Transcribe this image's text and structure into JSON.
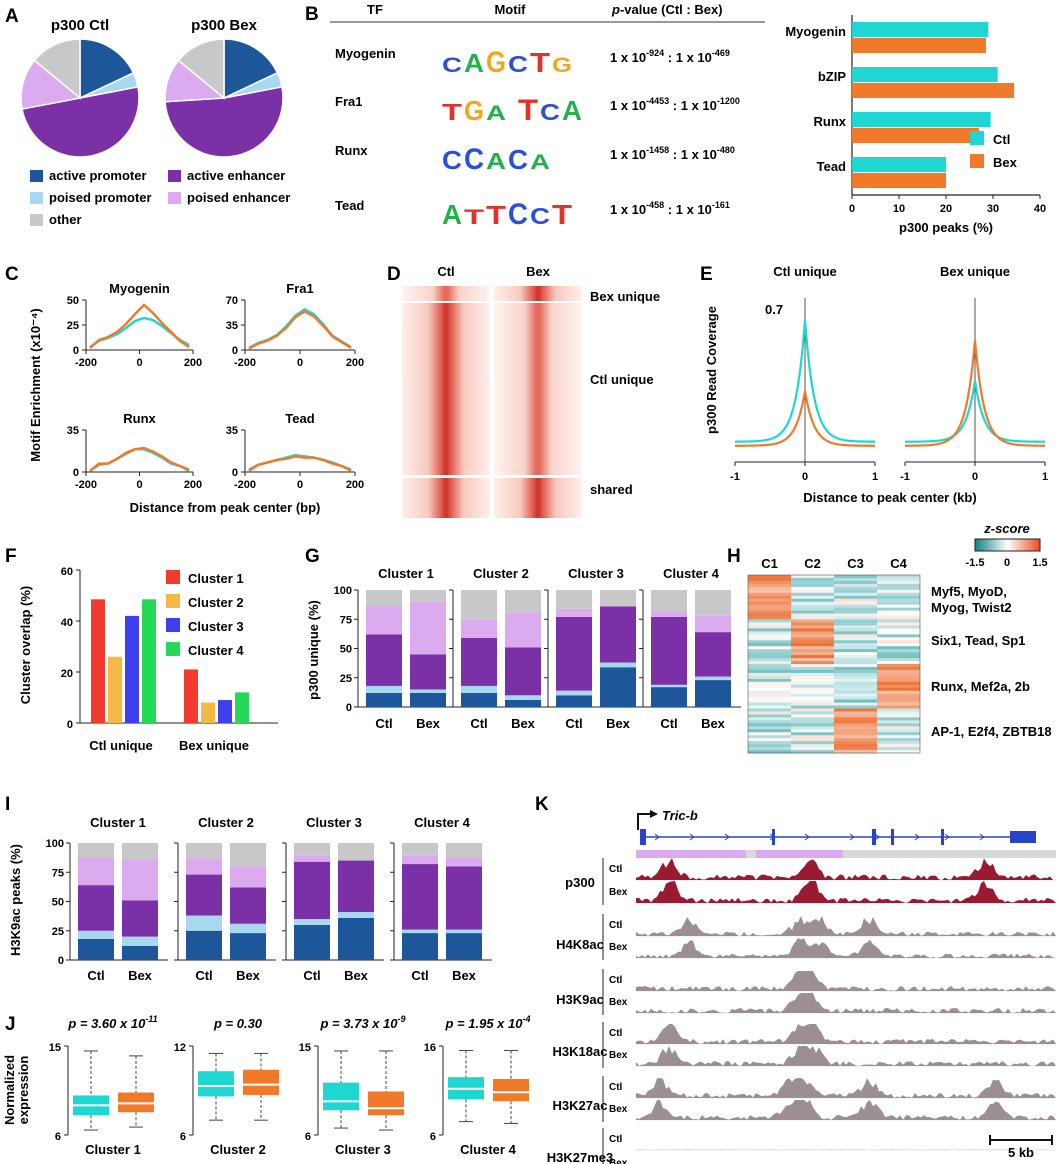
{
  "colors": {
    "ctl": "#1fd6d0",
    "bex": "#f07a2a",
    "active_promoter": "#1e5799",
    "poised_promoter": "#a8d8f0",
    "other": "#c8c8c8",
    "active_enhancer": "#7b30a8",
    "poised_enhancer": "#dcaaee",
    "cluster1": "#f23b2f",
    "cluster2": "#f5b746",
    "cluster3": "#3f3fef",
    "cluster4": "#25d858",
    "heat": "#c9302c",
    "track_p300": "#9b1a32",
    "track_gray": "#9b8f94"
  },
  "panels": {
    "A": "A",
    "B": "B",
    "C": "C",
    "D": "D",
    "E": "E",
    "F": "F",
    "G": "G",
    "H": "H",
    "I": "I",
    "J": "J",
    "K": "K"
  },
  "common": {
    "ctl": "Ctl",
    "bex": "Bex"
  },
  "panelA": {
    "pies": [
      {
        "title": "p300 Ctl",
        "slices": [
          {
            "cat": "active_promoter",
            "value": 18
          },
          {
            "cat": "poised_promoter",
            "value": 4
          },
          {
            "cat": "active_enhancer",
            "value": 50
          },
          {
            "cat": "poised_enhancer",
            "value": 14
          },
          {
            "cat": "other",
            "value": 14
          }
        ]
      },
      {
        "title": "p300 Bex",
        "slices": [
          {
            "cat": "active_promoter",
            "value": 18
          },
          {
            "cat": "poised_promoter",
            "value": 4
          },
          {
            "cat": "active_enhancer",
            "value": 52
          },
          {
            "cat": "poised_enhancer",
            "value": 12
          },
          {
            "cat": "other",
            "value": 14
          }
        ]
      }
    ],
    "legend": [
      {
        "cat": "active_promoter",
        "label": "active promoter"
      },
      {
        "cat": "active_enhancer",
        "label": "active enhancer"
      },
      {
        "cat": "poised_promoter",
        "label": "poised promoter"
      },
      {
        "cat": "poised_enhancer",
        "label": "poised enhancer"
      },
      {
        "cat": "other",
        "label": "other"
      }
    ]
  },
  "panelB": {
    "headers": {
      "tf": "TF",
      "motif": "Motif",
      "pvalue_prefix": "p",
      "pvalue_rest": "-value (Ctl : Bex)"
    },
    "rows": [
      {
        "tf": "Myogenin",
        "motif": "CAGCTG",
        "p1": "-924",
        "p2": "-469"
      },
      {
        "tf": "Fra1",
        "motif": "TGA TCA",
        "p1": "-4453",
        "p2": "-1200"
      },
      {
        "tf": "Runx",
        "motif": "CCACA",
        "p1": "-1458",
        "p2": "-480"
      },
      {
        "tf": "Tead",
        "motif": "ATTCCT",
        "p1": "-458",
        "p2": "-161"
      }
    ],
    "base": "1 x 10",
    "sep": " : "
  },
  "chart_data": [
    {
      "id": "B_bar",
      "type": "bar",
      "orientation": "horizontal",
      "categories": [
        "Myogenin",
        "bZIP",
        "Runx",
        "Tead"
      ],
      "series": [
        {
          "name": "Ctl",
          "values": [
            29,
            31,
            29.5,
            20
          ]
        },
        {
          "name": "Bex",
          "values": [
            28.5,
            34.5,
            27,
            20
          ]
        }
      ],
      "xlim": [
        0,
        40
      ],
      "xticks": [
        "0",
        "10",
        "20",
        "30",
        "40"
      ],
      "xlabel": "p300 peaks (%)"
    },
    {
      "id": "C_profiles",
      "type": "line",
      "xlabel": "Distance from peak center (bp)",
      "ylabel": "Motif Enrichment (x10⁻⁴)",
      "xticks": [
        "-200",
        "0",
        "200"
      ],
      "subplots": [
        {
          "title": "Myogenin",
          "ymax": 50,
          "yticks": [
            "0",
            "25",
            "50"
          ],
          "ctl": [
            3,
            9,
            12,
            16,
            22,
            29,
            32,
            30,
            24,
            17,
            10,
            5
          ],
          "bex": [
            2,
            10,
            13,
            18,
            26,
            36,
            45,
            37,
            27,
            18,
            9,
            3
          ]
        },
        {
          "title": "Fra1",
          "ymax": 70,
          "yticks": [
            "0",
            "35",
            "70"
          ],
          "ctl": [
            3,
            10,
            14,
            21,
            33,
            48,
            57,
            50,
            36,
            20,
            12,
            4
          ],
          "bex": [
            2,
            9,
            13,
            20,
            31,
            46,
            54,
            47,
            34,
            19,
            11,
            3
          ]
        },
        {
          "title": "Runx",
          "ymax": 35,
          "yticks": [
            "0",
            "35"
          ],
          "ctl": [
            1,
            6,
            7,
            11,
            15,
            19,
            19,
            16,
            12,
            7,
            5,
            1
          ],
          "bex": [
            1,
            7,
            7,
            11,
            16,
            19,
            20,
            17,
            13,
            8,
            5,
            2
          ]
        },
        {
          "title": "Tead",
          "ymax": 35,
          "yticks": [
            "0",
            "35"
          ],
          "ctl": [
            2,
            6,
            8,
            10,
            12,
            14,
            13,
            12,
            10,
            8,
            5,
            2
          ],
          "bex": [
            1,
            6,
            8,
            10,
            11,
            13,
            12,
            12,
            10,
            7,
            5,
            1
          ]
        }
      ]
    },
    {
      "id": "E_coverage",
      "type": "line",
      "ylabel": "p300 Read Coverage",
      "xlabel": "Distance to peak center (kb)",
      "xticks": [
        "-1",
        "0",
        "1"
      ],
      "annotation": "0.7",
      "subplots": [
        {
          "title": "Ctl unique",
          "ctl_peak": 0.7,
          "bex_peak": 0.35
        },
        {
          "title": "Bex unique",
          "ctl_peak": 0.4,
          "bex_peak": 0.6
        }
      ]
    },
    {
      "id": "F_bar",
      "type": "bar",
      "categories": [
        "Ctl unique",
        "Bex unique"
      ],
      "series": [
        {
          "name": "Cluster 1",
          "values": [
            48.5,
            21
          ]
        },
        {
          "name": "Cluster 2",
          "values": [
            26,
            8
          ]
        },
        {
          "name": "Cluster 3",
          "values": [
            42,
            9
          ]
        },
        {
          "name": "Cluster 4",
          "values": [
            48.5,
            12
          ]
        }
      ],
      "ylim": [
        0,
        60
      ],
      "yticks": [
        "0",
        "20",
        "40",
        "60"
      ],
      "ylabel": "Cluster overlap (%)"
    },
    {
      "id": "G_stacked",
      "type": "bar",
      "stacked": true,
      "ylabel": "p300 unique (%)",
      "yticks": [
        "0",
        "25",
        "50",
        "75",
        "100"
      ],
      "groups": [
        {
          "title": "Cluster 1",
          "ctl": [
            12,
            6,
            44,
            24,
            14
          ],
          "bex": [
            12,
            3,
            30,
            45,
            10
          ]
        },
        {
          "title": "Cluster 2",
          "ctl": [
            12,
            6,
            41,
            16,
            25
          ],
          "bex": [
            6,
            4,
            41,
            30,
            19
          ]
        },
        {
          "title": "Cluster 3",
          "ctl": [
            10,
            4,
            63,
            7,
            16
          ],
          "bex": [
            34,
            4,
            48,
            0,
            14
          ]
        },
        {
          "title": "Cluster 4",
          "ctl": [
            17,
            2,
            58,
            5,
            18
          ],
          "bex": [
            23,
            3,
            38,
            14,
            22
          ]
        }
      ],
      "order": [
        "active_promoter",
        "poised_promoter",
        "active_enhancer",
        "poised_enhancer",
        "other"
      ]
    },
    {
      "id": "H_heatmap",
      "type": "heatmap",
      "columns": [
        "C1",
        "C2",
        "C3",
        "C4"
      ],
      "scale_label": "z-score",
      "scale_ticks": [
        "-1.5",
        "0",
        "1.5"
      ],
      "row_groups": [
        "Myf5, MyoD, Myog, Twist2",
        "Six1, Tead, Sp1",
        "Runx, Mef2a, 2b",
        "AP-1, E2f4, ZBTB18"
      ]
    },
    {
      "id": "I_stacked",
      "type": "bar",
      "stacked": true,
      "ylabel": "H3K9ac peaks (%)",
      "yticks": [
        "0",
        "25",
        "50",
        "75",
        "100"
      ],
      "groups": [
        {
          "title": "Cluster 1",
          "ctl": [
            18,
            7,
            39,
            24,
            12
          ],
          "bex": [
            12,
            8,
            31,
            35,
            14
          ]
        },
        {
          "title": "Cluster 2",
          "ctl": [
            25,
            13,
            35,
            14,
            13
          ],
          "bex": [
            23,
            8,
            31,
            18,
            20
          ]
        },
        {
          "title": "Cluster 3",
          "ctl": [
            30,
            5,
            49,
            5,
            11
          ],
          "bex": [
            36,
            5,
            44,
            0,
            15
          ]
        },
        {
          "title": "Cluster 4",
          "ctl": [
            23,
            3,
            56,
            7,
            11
          ],
          "bex": [
            23,
            3,
            54,
            8,
            12
          ]
        }
      ],
      "order": [
        "active_promoter",
        "poised_promoter",
        "active_enhancer",
        "poised_enhancer",
        "other"
      ]
    },
    {
      "id": "J_boxplot",
      "type": "box",
      "ylabel": "Normalized expression",
      "groups": [
        {
          "title": "Cluster 1",
          "p": "p = 3.60 x 10",
          "pexp": "-11",
          "ymin": 6,
          "ymax": 15,
          "yticks": [
            "6",
            "15"
          ],
          "ctl": [
            6.5,
            8,
            9,
            10,
            14.5
          ],
          "bex": [
            6.8,
            8.3,
            9.2,
            10.3,
            14
          ]
        },
        {
          "title": "Cluster 2",
          "p": "p = 0.30",
          "pexp": "",
          "ymin": 6,
          "ymax": 12,
          "yticks": [
            "6",
            "12"
          ],
          "ctl": [
            7,
            8.6,
            9.3,
            10.3,
            11.5
          ],
          "bex": [
            7,
            8.7,
            9.4,
            10.4,
            11.5
          ]
        },
        {
          "title": "Cluster 3",
          "p": "p = 3.73 x 10",
          "pexp": "-9",
          "ymin": 6,
          "ymax": 15,
          "yticks": [
            "6",
            "15"
          ],
          "ctl": [
            6.7,
            8.5,
            9.4,
            11.3,
            14.5
          ],
          "bex": [
            6.5,
            8,
            8.7,
            10.4,
            14.5
          ]
        },
        {
          "title": "Cluster 4",
          "p": "p = 1.95 x 10",
          "pexp": "-4",
          "ymin": 6,
          "ymax": 16,
          "yticks": [
            "6",
            "16"
          ],
          "ctl": [
            7.5,
            10,
            11.2,
            12.5,
            15.5
          ],
          "bex": [
            7.3,
            9.8,
            10.8,
            12.3,
            15.5
          ]
        }
      ]
    }
  ],
  "panelD": {
    "labels": [
      "Bex unique",
      "Ctl unique",
      "shared"
    ]
  },
  "panelK": {
    "gene": "Tric-b",
    "tracks": [
      {
        "mark": "p300",
        "color_key": "track_p300"
      },
      {
        "mark": "H4K8ac",
        "color_key": "track_gray"
      },
      {
        "mark": "H3K9ac",
        "color_key": "track_gray"
      },
      {
        "mark": "H3K18ac",
        "color_key": "track_gray"
      },
      {
        "mark": "H3K27ac",
        "color_key": "track_gray"
      },
      {
        "mark": "H3K27me3",
        "color_key": "track_gray"
      }
    ],
    "scale": "5 kb"
  }
}
